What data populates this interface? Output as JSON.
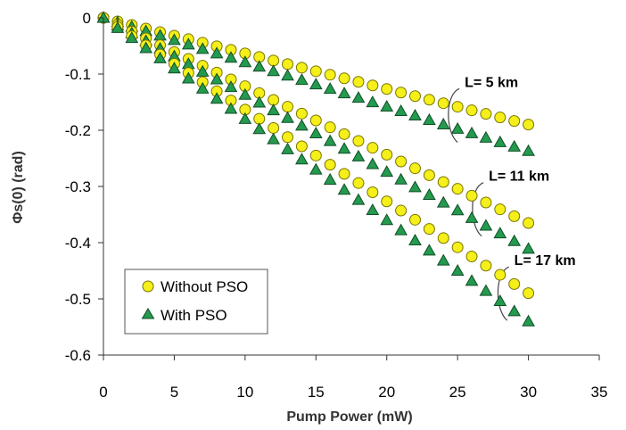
{
  "chart_data": {
    "type": "scatter",
    "title": "",
    "xlabel": "Pump Power (mW)",
    "ylabel": "Φs(0) (rad)",
    "xlim": [
      0,
      35
    ],
    "ylim": [
      -0.6,
      0
    ],
    "xticks": [
      0,
      5,
      10,
      15,
      20,
      25,
      30,
      35
    ],
    "yticks": [
      0,
      -0.1,
      -0.2,
      -0.3,
      -0.4,
      -0.5,
      -0.6
    ],
    "ytick_labels": [
      "0",
      "-0.1",
      "-0.2",
      "-0.3",
      "-0.4",
      "-0.5",
      "-0.6"
    ],
    "grid": false,
    "legend_position": "bottom-left",
    "legend": [
      {
        "label": "Without PSO",
        "marker": "circle",
        "color": "#f5ef1a",
        "edge": "#7a7400"
      },
      {
        "label": "With PSO",
        "marker": "triangle",
        "color": "#239a4e",
        "edge": "#124d27"
      }
    ],
    "x": [
      0,
      1,
      2,
      3,
      4,
      5,
      6,
      7,
      8,
      9,
      10,
      11,
      12,
      13,
      14,
      15,
      16,
      17,
      18,
      19,
      20,
      21,
      22,
      23,
      24,
      25,
      26,
      27,
      28,
      29,
      30
    ],
    "series": [
      {
        "group": "L= 5 km",
        "marker": "circle",
        "slope": -0.00633
      },
      {
        "group": "L= 5 km",
        "marker": "triangle",
        "slope": -0.0079
      },
      {
        "group": "L= 11 km",
        "marker": "circle",
        "slope": -0.01217
      },
      {
        "group": "L= 11 km",
        "marker": "triangle",
        "slope": -0.0137
      },
      {
        "group": "L= 17 km",
        "marker": "circle",
        "slope": -0.01633
      },
      {
        "group": "L= 17 km",
        "marker": "triangle",
        "slope": -0.018
      }
    ],
    "annotations": [
      {
        "text": "L= 5 km",
        "x": 25.5,
        "y": -0.123
      },
      {
        "text": "L= 11 km",
        "x": 27.2,
        "y": -0.29
      },
      {
        "text": "L= 17 km",
        "x": 29.0,
        "y": -0.44
      }
    ]
  }
}
